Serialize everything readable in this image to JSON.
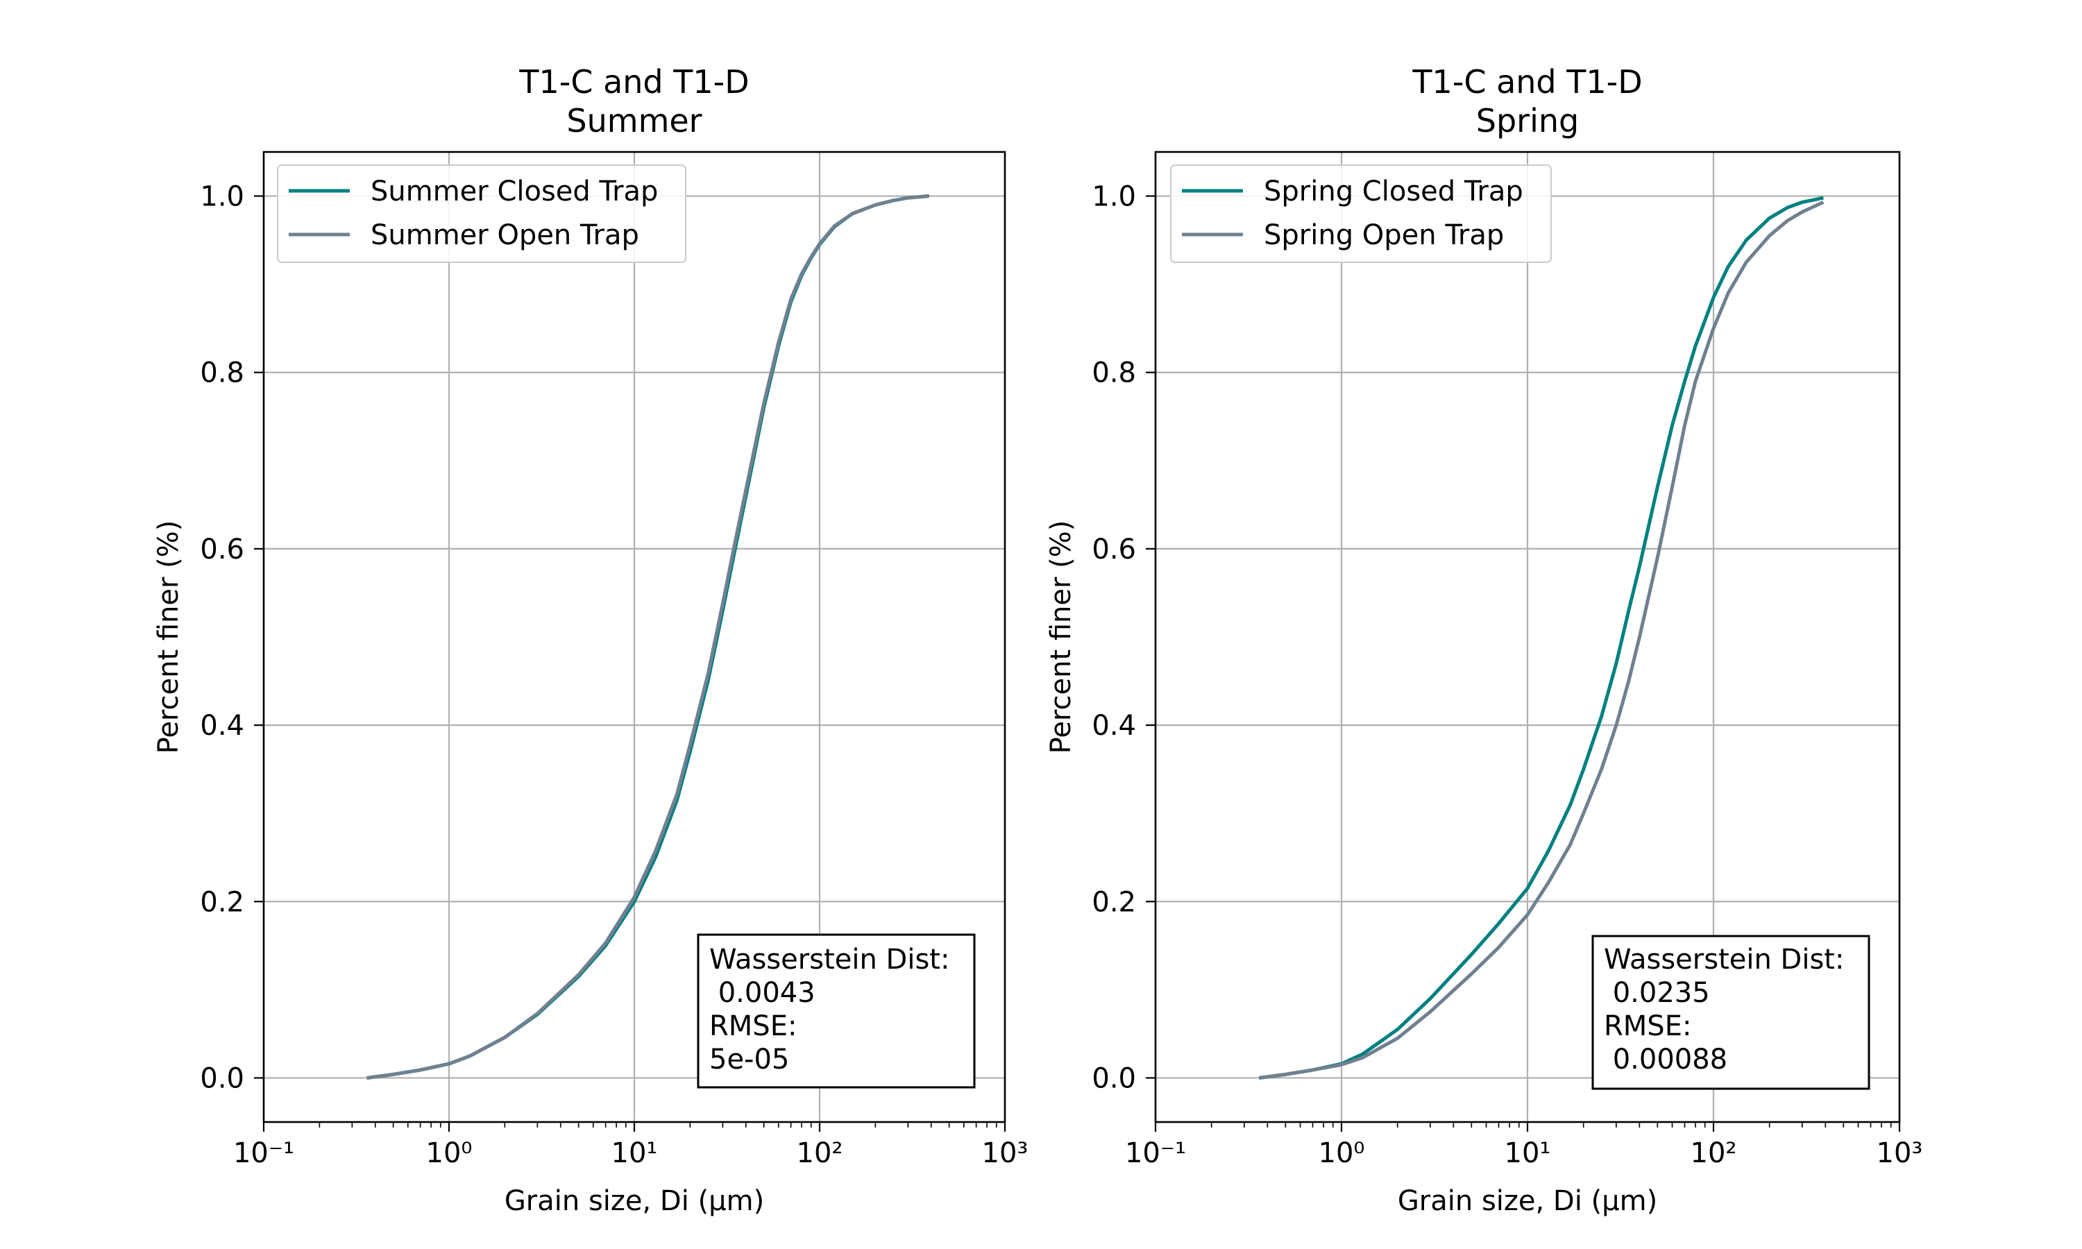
{
  "chart_data": [
    {
      "type": "line",
      "title_line1": "T1-C and T1-D",
      "title_line2": "Summer",
      "xlabel": "Grain size, Di (μm)",
      "ylabel": "Percent finer (%)",
      "xscale": "log",
      "xlim": [
        0.1,
        1000
      ],
      "ylim": [
        -0.05,
        1.05
      ],
      "xticks": [
        0.1,
        1,
        10,
        100,
        1000
      ],
      "xtick_labels": [
        "10⁻¹",
        "10⁰",
        "10¹",
        "10²",
        "10³"
      ],
      "yticks": [
        0.0,
        0.2,
        0.4,
        0.6,
        0.8,
        1.0
      ],
      "ytick_labels": [
        "0.0",
        "0.2",
        "0.4",
        "0.6",
        "0.8",
        "1.0"
      ],
      "grid": true,
      "legend_position": "top-left",
      "annotation": [
        "Wasserstein Dist:",
        " 0.0043",
        "RMSE:",
        "5e-05"
      ],
      "series": [
        {
          "name": "Summer Closed Trap",
          "color": "#008080",
          "x": [
            0.36,
            0.5,
            0.7,
            1.0,
            1.3,
            2.0,
            3.0,
            5.0,
            7.0,
            10,
            13,
            17,
            20,
            25,
            30,
            35,
            40,
            50,
            60,
            70,
            80,
            90,
            100,
            120,
            150,
            200,
            250,
            300,
            390
          ],
          "y": [
            0.0,
            0.004,
            0.009,
            0.016,
            0.025,
            0.046,
            0.072,
            0.115,
            0.15,
            0.2,
            0.25,
            0.315,
            0.37,
            0.45,
            0.53,
            0.6,
            0.66,
            0.76,
            0.83,
            0.88,
            0.91,
            0.93,
            0.945,
            0.965,
            0.98,
            0.99,
            0.995,
            0.998,
            1.0
          ]
        },
        {
          "name": "Summer Open Trap",
          "color": "#708090",
          "x": [
            0.36,
            0.5,
            0.7,
            1.0,
            1.3,
            2.0,
            3.0,
            5.0,
            7.0,
            10,
            13,
            17,
            20,
            25,
            30,
            35,
            40,
            50,
            60,
            70,
            80,
            90,
            100,
            120,
            150,
            200,
            250,
            300,
            390
          ],
          "y": [
            0.0,
            0.004,
            0.009,
            0.016,
            0.025,
            0.046,
            0.073,
            0.117,
            0.153,
            0.205,
            0.257,
            0.322,
            0.378,
            0.458,
            0.538,
            0.608,
            0.667,
            0.765,
            0.834,
            0.883,
            0.912,
            0.931,
            0.946,
            0.966,
            0.98,
            0.99,
            0.995,
            0.998,
            1.0
          ]
        }
      ]
    },
    {
      "type": "line",
      "title_line1": "T1-C and T1-D",
      "title_line2": "Spring",
      "xlabel": "Grain size, Di (μm)",
      "ylabel": "Percent finer (%)",
      "xscale": "log",
      "xlim": [
        0.1,
        1000
      ],
      "ylim": [
        -0.05,
        1.05
      ],
      "xticks": [
        0.1,
        1,
        10,
        100,
        1000
      ],
      "xtick_labels": [
        "10⁻¹",
        "10⁰",
        "10¹",
        "10²",
        "10³"
      ],
      "yticks": [
        0.0,
        0.2,
        0.4,
        0.6,
        0.8,
        1.0
      ],
      "ytick_labels": [
        "0.0",
        "0.2",
        "0.4",
        "0.6",
        "0.8",
        "1.0"
      ],
      "grid": true,
      "legend_position": "top-left",
      "annotation": [
        "Wasserstein Dist:",
        " 0.0235",
        "RMSE:",
        " 0.00088"
      ],
      "series": [
        {
          "name": "Spring Closed Trap",
          "color": "#008080",
          "x": [
            0.36,
            0.5,
            0.7,
            1.0,
            1.3,
            2.0,
            3.0,
            5.0,
            7.0,
            10,
            13,
            17,
            20,
            25,
            30,
            35,
            40,
            50,
            60,
            70,
            80,
            100,
            120,
            150,
            200,
            250,
            300,
            390
          ],
          "y": [
            0.0,
            0.004,
            0.009,
            0.016,
            0.027,
            0.055,
            0.09,
            0.14,
            0.175,
            0.215,
            0.258,
            0.31,
            0.35,
            0.41,
            0.47,
            0.53,
            0.58,
            0.67,
            0.74,
            0.79,
            0.83,
            0.885,
            0.92,
            0.95,
            0.975,
            0.987,
            0.993,
            0.998
          ]
        },
        {
          "name": "Spring Open Trap",
          "color": "#708090",
          "x": [
            0.36,
            0.5,
            0.7,
            1.0,
            1.3,
            2.0,
            3.0,
            5.0,
            7.0,
            10,
            13,
            17,
            20,
            25,
            30,
            35,
            40,
            50,
            60,
            70,
            80,
            100,
            120,
            150,
            200,
            250,
            300,
            390
          ],
          "y": [
            0.0,
            0.004,
            0.009,
            0.015,
            0.023,
            0.045,
            0.075,
            0.118,
            0.148,
            0.185,
            0.222,
            0.265,
            0.3,
            0.35,
            0.4,
            0.45,
            0.5,
            0.59,
            0.67,
            0.74,
            0.79,
            0.85,
            0.89,
            0.925,
            0.955,
            0.972,
            0.982,
            0.993
          ]
        }
      ]
    }
  ]
}
